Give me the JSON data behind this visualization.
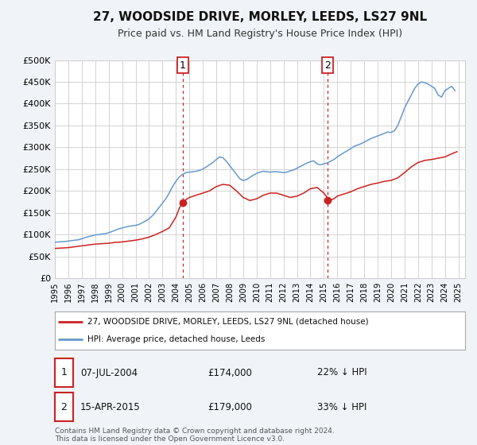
{
  "title": "27, WOODSIDE DRIVE, MORLEY, LEEDS, LS27 9NL",
  "subtitle": "Price paid vs. HM Land Registry's House Price Index (HPI)",
  "ylim": [
    0,
    500000
  ],
  "xlim_start": 1995.0,
  "xlim_end": 2025.5,
  "yticks": [
    0,
    50000,
    100000,
    150000,
    200000,
    250000,
    300000,
    350000,
    400000,
    450000,
    500000
  ],
  "ytick_labels": [
    "£0",
    "£50K",
    "£100K",
    "£150K",
    "£200K",
    "£250K",
    "£300K",
    "£350K",
    "£400K",
    "£450K",
    "£500K"
  ],
  "xticks": [
    1995,
    1996,
    1997,
    1998,
    1999,
    2000,
    2001,
    2002,
    2003,
    2004,
    2005,
    2006,
    2007,
    2008,
    2009,
    2010,
    2011,
    2012,
    2013,
    2014,
    2015,
    2016,
    2017,
    2018,
    2019,
    2020,
    2021,
    2022,
    2023,
    2024,
    2025
  ],
  "hpi_color": "#6699cc",
  "price_color": "#cc2222",
  "marker_color": "#cc2222",
  "vline1_x": 2004.52,
  "vline2_x": 2015.29,
  "marker1_x": 2004.52,
  "marker1_y": 174000,
  "marker2_x": 2015.29,
  "marker2_y": 179000,
  "legend_label_price": "27, WOODSIDE DRIVE, MORLEY, LEEDS, LS27 9NL (detached house)",
  "legend_label_hpi": "HPI: Average price, detached house, Leeds",
  "annotation1_label": "1",
  "annotation2_label": "2",
  "annotation1_date": "07-JUL-2004",
  "annotation1_price": "£174,000",
  "annotation1_pct": "22% ↓ HPI",
  "annotation2_date": "15-APR-2015",
  "annotation2_price": "£179,000",
  "annotation2_pct": "33% ↓ HPI",
  "footer": "Contains HM Land Registry data © Crown copyright and database right 2024.\nThis data is licensed under the Open Government Licence v3.0.",
  "background_color": "#f0f4f8",
  "plot_bg_color": "#ffffff",
  "grid_color": "#cccccc",
  "title_fontsize": 11,
  "subtitle_fontsize": 9,
  "hpi_data_x": [
    1995.0,
    1995.25,
    1995.5,
    1995.75,
    1996.0,
    1996.25,
    1996.5,
    1996.75,
    1997.0,
    1997.25,
    1997.5,
    1997.75,
    1998.0,
    1998.25,
    1998.5,
    1998.75,
    1999.0,
    1999.25,
    1999.5,
    1999.75,
    2000.0,
    2000.25,
    2000.5,
    2000.75,
    2001.0,
    2001.25,
    2001.5,
    2001.75,
    2002.0,
    2002.25,
    2002.5,
    2002.75,
    2003.0,
    2003.25,
    2003.5,
    2003.75,
    2004.0,
    2004.25,
    2004.5,
    2004.75,
    2005.0,
    2005.25,
    2005.5,
    2005.75,
    2006.0,
    2006.25,
    2006.5,
    2006.75,
    2007.0,
    2007.25,
    2007.5,
    2007.75,
    2008.0,
    2008.25,
    2008.5,
    2008.75,
    2009.0,
    2009.25,
    2009.5,
    2009.75,
    2010.0,
    2010.25,
    2010.5,
    2010.75,
    2011.0,
    2011.25,
    2011.5,
    2011.75,
    2012.0,
    2012.25,
    2012.5,
    2012.75,
    2013.0,
    2013.25,
    2013.5,
    2013.75,
    2014.0,
    2014.25,
    2014.5,
    2014.75,
    2015.0,
    2015.25,
    2015.5,
    2015.75,
    2016.0,
    2016.25,
    2016.5,
    2016.75,
    2017.0,
    2017.25,
    2017.5,
    2017.75,
    2018.0,
    2018.25,
    2018.5,
    2018.75,
    2019.0,
    2019.25,
    2019.5,
    2019.75,
    2020.0,
    2020.25,
    2020.5,
    2020.75,
    2021.0,
    2021.25,
    2021.5,
    2021.75,
    2022.0,
    2022.25,
    2022.5,
    2022.75,
    2023.0,
    2023.25,
    2023.5,
    2023.75,
    2024.0,
    2024.25,
    2024.5,
    2024.75
  ],
  "hpi_data_y": [
    82000,
    83000,
    83500,
    84000,
    85000,
    86000,
    87000,
    88000,
    90000,
    93000,
    95000,
    97000,
    99000,
    100000,
    101000,
    102000,
    104000,
    107000,
    110000,
    113000,
    115000,
    117000,
    119000,
    120000,
    121000,
    123000,
    127000,
    131000,
    136000,
    143000,
    152000,
    162000,
    172000,
    182000,
    195000,
    210000,
    222000,
    232000,
    238000,
    242000,
    243000,
    244000,
    245000,
    247000,
    250000,
    255000,
    260000,
    265000,
    272000,
    278000,
    276000,
    268000,
    258000,
    248000,
    238000,
    228000,
    224000,
    226000,
    231000,
    236000,
    240000,
    243000,
    245000,
    244000,
    243000,
    244000,
    244000,
    243000,
    242000,
    243000,
    246000,
    248000,
    252000,
    256000,
    260000,
    264000,
    267000,
    269000,
    262000,
    260000,
    262000,
    264000,
    268000,
    272000,
    278000,
    283000,
    288000,
    292000,
    297000,
    302000,
    305000,
    308000,
    312000,
    316000,
    320000,
    323000,
    326000,
    329000,
    332000,
    335000,
    334000,
    338000,
    350000,
    370000,
    390000,
    405000,
    420000,
    435000,
    445000,
    450000,
    448000,
    445000,
    440000,
    435000,
    420000,
    415000,
    430000,
    435000,
    440000,
    430000
  ],
  "price_data_x": [
    1995.0,
    1995.5,
    1996.0,
    1996.5,
    1997.0,
    1997.5,
    1998.0,
    1998.5,
    1999.0,
    1999.5,
    2000.0,
    2000.5,
    2001.0,
    2001.5,
    2002.0,
    2002.5,
    2003.0,
    2003.5,
    2004.0,
    2004.25,
    2004.5,
    2004.75,
    2005.0,
    2005.5,
    2006.0,
    2006.5,
    2007.0,
    2007.5,
    2008.0,
    2008.5,
    2009.0,
    2009.5,
    2010.0,
    2010.5,
    2011.0,
    2011.5,
    2012.0,
    2012.5,
    2013.0,
    2013.5,
    2014.0,
    2014.5,
    2015.0,
    2015.25,
    2015.5,
    2015.75,
    2016.0,
    2016.5,
    2017.0,
    2017.5,
    2018.0,
    2018.5,
    2019.0,
    2019.5,
    2020.0,
    2020.5,
    2021.0,
    2021.5,
    2022.0,
    2022.5,
    2023.0,
    2023.5,
    2024.0,
    2024.5,
    2024.9
  ],
  "price_data_y": [
    68000,
    69000,
    70000,
    72000,
    74000,
    76000,
    78000,
    79000,
    80000,
    82000,
    83000,
    85000,
    87000,
    90000,
    94000,
    100000,
    107000,
    115000,
    140000,
    160000,
    174000,
    180000,
    185000,
    190000,
    195000,
    200000,
    210000,
    215000,
    213000,
    200000,
    185000,
    178000,
    182000,
    190000,
    195000,
    195000,
    190000,
    185000,
    188000,
    195000,
    205000,
    208000,
    195000,
    185000,
    179000,
    182000,
    188000,
    193000,
    198000,
    205000,
    210000,
    215000,
    218000,
    222000,
    224000,
    230000,
    242000,
    255000,
    265000,
    270000,
    272000,
    275000,
    278000,
    285000,
    290000
  ]
}
